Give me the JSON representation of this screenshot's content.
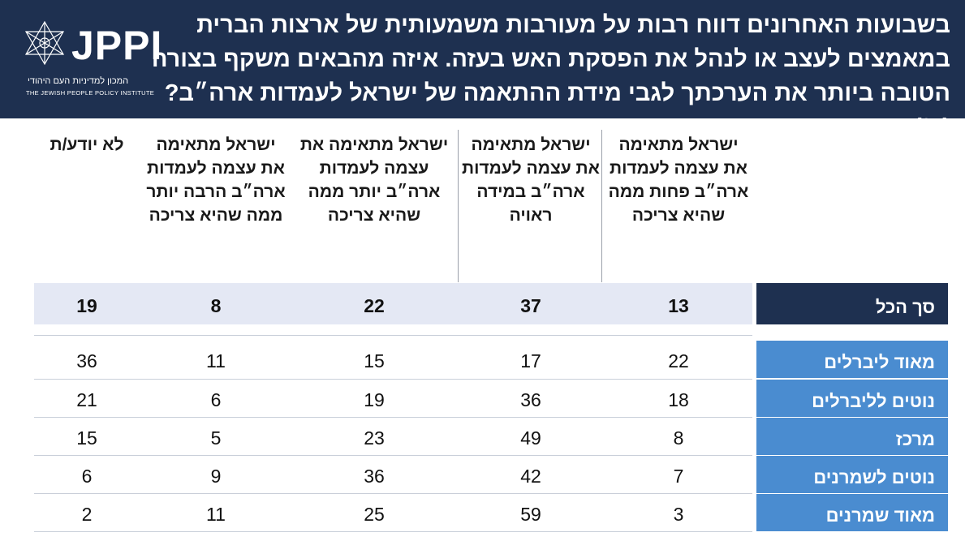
{
  "header": {
    "question": "בשבועות האחרונים דווח רבות על מעורבות משמעותית של ארצות הברית במאמצים לעצב או לנהל את הפסקת האש בעזה. איזה מהבאים משקף בצורה הטובה ביותר את הערכתך לגבי מידת ההתאמה של ישראל לעמדות ארה״ב? (%)",
    "logo_text": "JPPI",
    "logo_hebrew": "המכון למדיניות העם היהודי",
    "logo_english": "THE JEWISH PEOPLE POLICY INSTITUTE"
  },
  "colors": {
    "header_bg": "#1e3050",
    "label_dark": "#1e3050",
    "label_light": "#4a8cd0",
    "total_band": "#e4e8f4"
  },
  "chart_data": {
    "type": "table",
    "title": "בשבועות האחרונים דווח רבות על מעורבות משמעותית של ארצות הברית במאמצים לעצב או לנהל את הפסקת האש בעזה. איזה מהבאים משקף בצורה הטובה ביותר את הערכתך לגבי מידת ההתאמה של ישראל לעמדות ארה״ב? (%)",
    "columns": [
      "ישראל מתאימה את עצמה לעמדות ארה״ב פחות ממה שהיא צריכה",
      "ישראל מתאימה את עצמה לעמדות ארה״ב במידה ראויה",
      "ישראל מתאימה את עצמה לעמדות ארה״ב יותר ממה שהיא צריכה",
      "ישראל מתאימה את עצמה לעמדות ארה״ב הרבה יותר ממה שהיא צריכה",
      "לא יודע/ת"
    ],
    "total": {
      "label": "סך הכל",
      "values": [
        13,
        37,
        22,
        8,
        19
      ]
    },
    "rows": [
      {
        "label": "מאוד ליברלים",
        "values": [
          22,
          17,
          15,
          11,
          36
        ]
      },
      {
        "label": "נוטים לליברלים",
        "values": [
          18,
          36,
          19,
          6,
          21
        ]
      },
      {
        "label": "מרכז",
        "values": [
          8,
          49,
          23,
          5,
          15
        ]
      },
      {
        "label": "נוטים לשמרנים",
        "values": [
          7,
          42,
          36,
          9,
          6
        ]
      },
      {
        "label": "מאוד שמרנים",
        "values": [
          3,
          59,
          25,
          11,
          2
        ]
      }
    ]
  }
}
